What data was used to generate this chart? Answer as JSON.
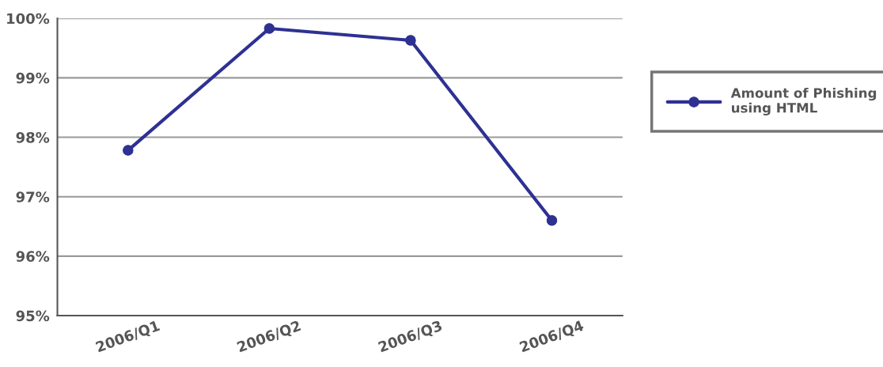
{
  "chart_data": {
    "type": "line",
    "categories": [
      "2006/Q1",
      "2006/Q2",
      "2006/Q3",
      "2006/Q4"
    ],
    "series": [
      {
        "name": "Amount of Phishing\nusing HTML",
        "color": "#2e3192",
        "values": [
          97.78,
          99.83,
          99.63,
          96.6
        ]
      }
    ],
    "ylim": [
      95,
      100
    ],
    "yticks": [
      {
        "value": 95,
        "label": "95%"
      },
      {
        "value": 96,
        "label": "96%"
      },
      {
        "value": 97,
        "label": "97%"
      },
      {
        "value": 98,
        "label": "98%"
      },
      {
        "value": 99,
        "label": "99%"
      },
      {
        "value": 100,
        "label": "100%"
      }
    ],
    "grid": "y",
    "legend": "right",
    "marker": "circle",
    "line_style": "solid"
  }
}
